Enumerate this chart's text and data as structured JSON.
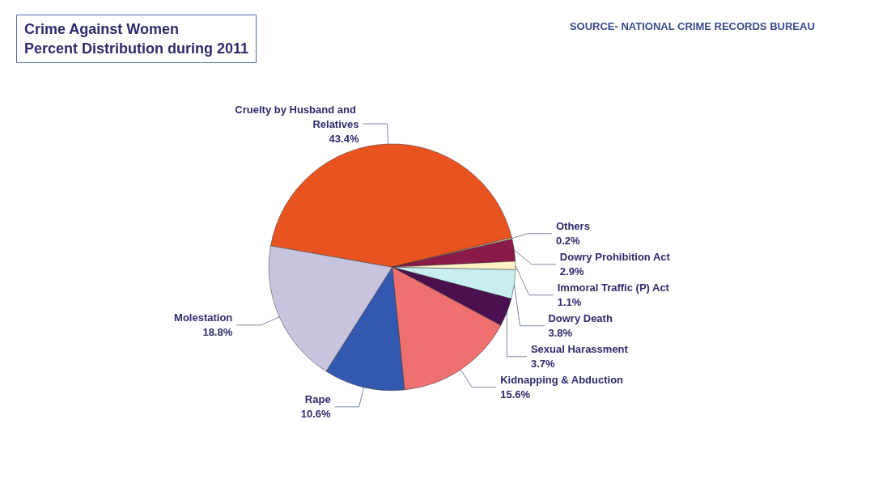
{
  "chart_data": {
    "type": "pie",
    "title": "Crime Against Women\nPercent Distribution during 2011",
    "annotations": [
      "SOURCE- NATIONAL CRIME RECORDS BUREAU"
    ],
    "categories": [
      "Cruelty by Husband and Relatives",
      "Others",
      "Dowry Prohibition Act",
      "Immoral Traffic (P) Act",
      "Dowry Death",
      "Sexual Harassment",
      "Kidnapping & Abduction",
      "Rape",
      "Molestation"
    ],
    "values": [
      43.4,
      0.2,
      2.9,
      1.1,
      3.8,
      3.7,
      15.6,
      10.6,
      18.8
    ],
    "colors": [
      "#e8531f",
      "#e6d49a",
      "#8b1a4a",
      "#fff3c4",
      "#c8eef2",
      "#4a1050",
      "#f07070",
      "#3358b0",
      "#c8c4e0"
    ],
    "value_labels": [
      "43.4%",
      "0.2%",
      "2.9%",
      "1.1%",
      "3.8%",
      "3.7%",
      "15.6%",
      "10.6%",
      "18.8%"
    ],
    "legend": false
  }
}
